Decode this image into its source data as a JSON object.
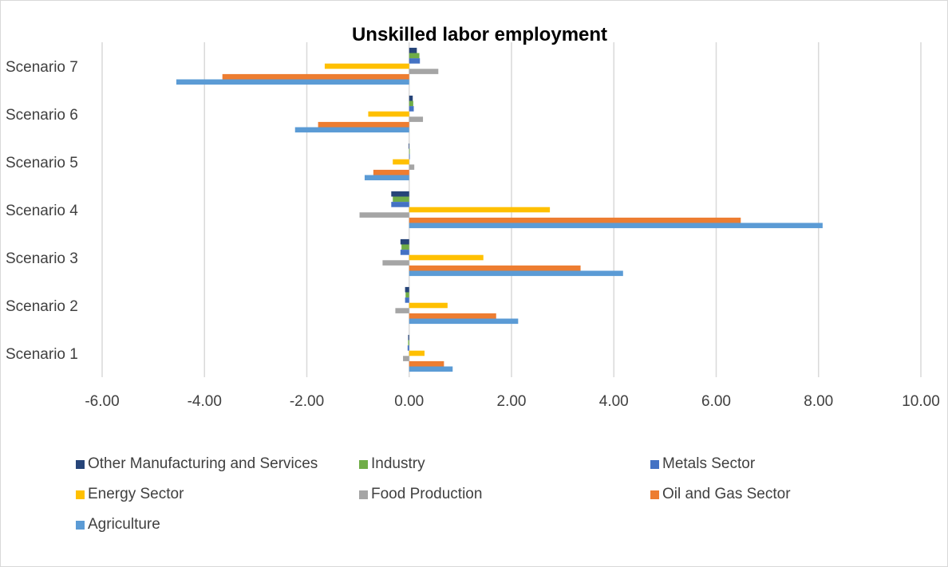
{
  "chart_data": {
    "type": "bar",
    "orientation": "horizontal",
    "title": "Unskilled labor employment",
    "categories": [
      "Scenario 1",
      "Scenario 2",
      "Scenario 3",
      "Scenario 4",
      "Scenario 5",
      "Scenario 6",
      "Scenario 7"
    ],
    "xlim": [
      -6,
      10
    ],
    "xticks": [
      "-6.00",
      "-4.00",
      "-2.00",
      "0.00",
      "2.00",
      "4.00",
      "6.00",
      "8.00",
      "10.00"
    ],
    "xtick_values": [
      -6,
      -4,
      -2,
      0,
      2,
      4,
      6,
      8,
      10
    ],
    "grid": "vertical",
    "legend_position": "bottom",
    "series": [
      {
        "name": "Other Manufacturing and Services",
        "color": "#264478",
        "values": [
          -0.02,
          -0.08,
          -0.17,
          -0.35,
          -0.01,
          0.07,
          0.15
        ]
      },
      {
        "name": "Industry",
        "color": "#70AD47",
        "values": [
          -0.02,
          -0.07,
          -0.15,
          -0.32,
          0.01,
          0.08,
          0.2
        ]
      },
      {
        "name": "Metals Sector",
        "color": "#4472C4",
        "values": [
          -0.03,
          -0.08,
          -0.17,
          -0.35,
          0.01,
          0.09,
          0.21
        ]
      },
      {
        "name": "Energy Sector",
        "color": "#FFC000",
        "values": [
          0.3,
          0.75,
          1.45,
          2.75,
          -0.32,
          -0.8,
          -1.65
        ]
      },
      {
        "name": "Food Production",
        "color": "#A5A5A5",
        "values": [
          -0.12,
          -0.27,
          -0.52,
          -0.97,
          0.1,
          0.27,
          0.57
        ]
      },
      {
        "name": "Oil and Gas Sector",
        "color": "#ED7D31",
        "values": [
          0.68,
          1.7,
          3.35,
          6.48,
          -0.7,
          -1.78,
          -3.65
        ]
      },
      {
        "name": "Agriculture",
        "color": "#5B9BD5",
        "values": [
          0.85,
          2.13,
          4.18,
          8.08,
          -0.87,
          -2.23,
          -4.55
        ]
      }
    ]
  }
}
